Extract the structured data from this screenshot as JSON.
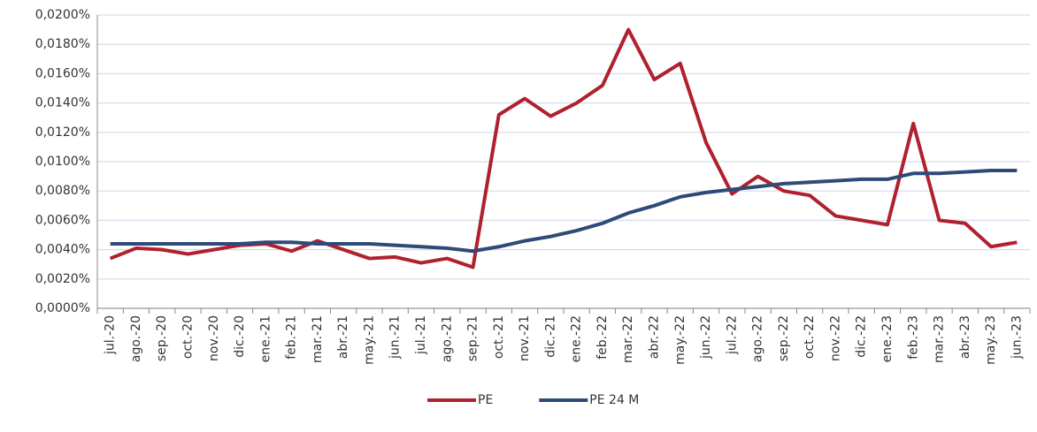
{
  "chart_data": {
    "type": "line",
    "categories": [
      "jul.-20",
      "ago.-20",
      "sep.-20",
      "oct.-20",
      "nov.-20",
      "dic.-20",
      "ene.-21",
      "feb.-21",
      "mar.-21",
      "abr.-21",
      "may.-21",
      "jun.-21",
      "jul.-21",
      "ago.-21",
      "sep.-21",
      "oct.-21",
      "nov.-21",
      "dic.-21",
      "ene.-22",
      "feb.-22",
      "mar.-22",
      "abr.-22",
      "may.-22",
      "jun.-22",
      "jul.-22",
      "ago.-22",
      "sep.-22",
      "oct.-22",
      "nov.-22",
      "dic.-22",
      "ene.-23",
      "feb.-23",
      "mar.-23",
      "abr.-23",
      "may.-23",
      "jun.-23"
    ],
    "series": [
      {
        "name": "PE",
        "color": "#b0202e",
        "values": [
          0.0034,
          0.0041,
          0.004,
          0.0037,
          0.004,
          0.0043,
          0.0044,
          0.0039,
          0.0046,
          0.004,
          0.0034,
          0.0035,
          0.0031,
          0.0034,
          0.0028,
          0.0132,
          0.0143,
          0.0131,
          0.014,
          0.0152,
          0.019,
          0.0156,
          0.0167,
          0.0113,
          0.0078,
          0.009,
          0.008,
          0.0077,
          0.0063,
          0.006,
          0.0057,
          0.0126,
          0.006,
          0.0058,
          0.0042,
          0.0045
        ]
      },
      {
        "name": "PE 24 M",
        "color": "#2e4a78",
        "values": [
          0.0044,
          0.0044,
          0.0044,
          0.0044,
          0.0044,
          0.0044,
          0.0045,
          0.0045,
          0.0044,
          0.0044,
          0.0044,
          0.0043,
          0.0042,
          0.0041,
          0.0039,
          0.0042,
          0.0046,
          0.0049,
          0.0053,
          0.0058,
          0.0065,
          0.007,
          0.0076,
          0.0079,
          0.0081,
          0.0083,
          0.0085,
          0.0086,
          0.0087,
          0.0088,
          0.0088,
          0.0092,
          0.0092,
          0.0093,
          0.0094,
          0.0094
        ]
      }
    ],
    "ylim": [
      0,
      0.02
    ],
    "yticks": [
      {
        "value": 0,
        "label": "0,0000%"
      },
      {
        "value": 0.002,
        "label": "0,0020%"
      },
      {
        "value": 0.004,
        "label": "0,0040%"
      },
      {
        "value": 0.006,
        "label": "0,0060%"
      },
      {
        "value": 0.008,
        "label": "0,0080%"
      },
      {
        "value": 0.01,
        "label": "0,0100%"
      },
      {
        "value": 0.012,
        "label": "0,0120%"
      },
      {
        "value": 0.014,
        "label": "0,0140%"
      },
      {
        "value": 0.016,
        "label": "0,0160%"
      },
      {
        "value": 0.018,
        "label": "0,0180%"
      },
      {
        "value": 0.02,
        "label": "0,0200%"
      }
    ],
    "grid": true,
    "legend": "bottom"
  }
}
